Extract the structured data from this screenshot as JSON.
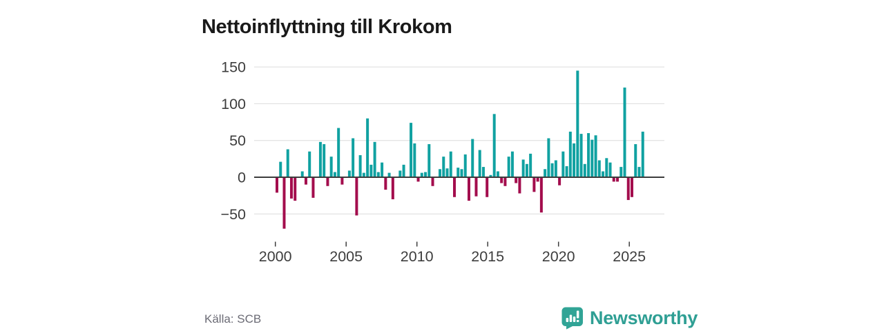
{
  "title": "Nettoinflyttning till Krokom",
  "source": {
    "label": "Källa: SCB"
  },
  "brand": {
    "name": "Newsworthy",
    "logo_icon": "speech-bubble-bar-chart",
    "color": "#31a496"
  },
  "colors": {
    "positive": "#10A1A1",
    "negative": "#A30D4D",
    "grid": "#dcdcdc",
    "zero_line": "#3c3c3c",
    "tick_text": "#3d3d3d",
    "title_text": "#1a1a1a",
    "source_text": "#6b6b75"
  },
  "chart_data": {
    "type": "bar",
    "title": "Nettoinflyttning till Krokom",
    "xlabel": "",
    "ylabel": "",
    "x_unit": "quarter",
    "first_period": "2000Q1",
    "last_period": "2025Q2",
    "x_tick_years": [
      2000,
      2005,
      2010,
      2015,
      2020,
      2025
    ],
    "y_ticks": [
      150,
      100,
      50,
      0,
      -50
    ],
    "y_tick_labels": [
      "150",
      "100",
      "50",
      "0",
      "−50"
    ],
    "ylim": [
      -80,
      160
    ],
    "grid": "horizontal",
    "legend": "none",
    "values": [
      -21,
      21,
      -70,
      38,
      -29,
      -32,
      0,
      8,
      -10,
      35,
      -28,
      0,
      48,
      45,
      -12,
      28,
      7,
      67,
      -10,
      0,
      9,
      53,
      -52,
      30,
      6,
      80,
      17,
      48,
      7,
      20,
      -17,
      6,
      -30,
      0,
      9,
      17,
      0,
      74,
      46,
      -6,
      6,
      7,
      45,
      -12,
      0,
      11,
      28,
      12,
      35,
      -27,
      13,
      11,
      31,
      -32,
      52,
      -26,
      37,
      14,
      -27,
      3,
      86,
      8,
      -8,
      -12,
      28,
      35,
      -8,
      -22,
      24,
      18,
      32,
      -20,
      -6,
      -48,
      11,
      53,
      19,
      23,
      -11,
      35,
      15,
      62,
      46,
      145,
      59,
      18,
      60,
      51,
      57,
      23,
      8,
      26,
      20,
      -6,
      -6,
      14,
      122,
      -31,
      -27,
      45,
      14,
      62
    ]
  }
}
